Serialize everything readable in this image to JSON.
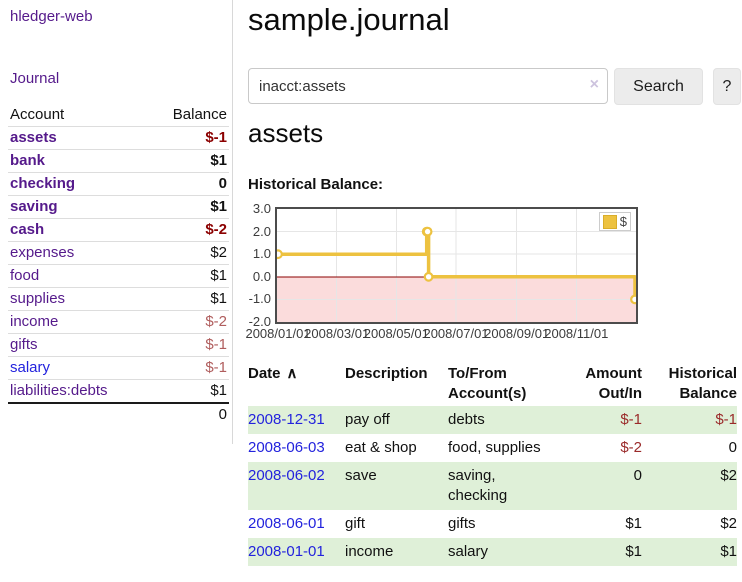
{
  "app": {
    "title": "hledger-web",
    "nav_journal": "Journal"
  },
  "sidebar": {
    "headers": {
      "account": "Account",
      "balance": "Balance"
    },
    "accounts": [
      {
        "name": "assets",
        "balance": "$-1"
      },
      {
        "name": "bank",
        "balance": "$1"
      },
      {
        "name": "checking",
        "balance": "0"
      },
      {
        "name": "saving",
        "balance": "$1"
      },
      {
        "name": "cash",
        "balance": "$-2"
      },
      {
        "name": "expenses",
        "balance": "$2"
      },
      {
        "name": "food",
        "balance": "$1"
      },
      {
        "name": "supplies",
        "balance": "$1"
      },
      {
        "name": "income",
        "balance": "$-2"
      },
      {
        "name": "gifts",
        "balance": "$-1"
      },
      {
        "name": "salary",
        "balance": "$-1"
      },
      {
        "name": "liabilities:debts",
        "balance": "$1"
      }
    ],
    "total": "0"
  },
  "header": {
    "title": "sample.journal"
  },
  "search": {
    "value": "inacct:assets",
    "clear_icon": "×",
    "button_label": "Search",
    "help_label": "?"
  },
  "account_page": {
    "heading": "assets",
    "chart_label": "Historical Balance:"
  },
  "chart_data": {
    "type": "line",
    "step": true,
    "title": "Historical Balance",
    "series": [
      {
        "name": "$",
        "color": "#edc240",
        "points": [
          {
            "date": "2008-01-01",
            "value": 1
          },
          {
            "date": "2008-06-01",
            "value": 2
          },
          {
            "date": "2008-06-02",
            "value": 2
          },
          {
            "date": "2008-06-03",
            "value": 0
          },
          {
            "date": "2008-12-31",
            "value": -1
          }
        ]
      }
    ],
    "x_range": [
      "2008-01-01",
      "2008-12-31"
    ],
    "ylim": [
      -2,
      3
    ],
    "y_ticks": [
      {
        "value": 3,
        "label": "3.0"
      },
      {
        "value": 2,
        "label": "2.0"
      },
      {
        "value": 1,
        "label": "1.0"
      },
      {
        "value": 0,
        "label": "0.0"
      },
      {
        "value": -1,
        "label": "-1.0"
      },
      {
        "value": -2,
        "label": "-2.0"
      }
    ],
    "x_ticks": [
      {
        "date": "2008-01-01",
        "label": "2008/01/01"
      },
      {
        "date": "2008-03-01",
        "label": "2008/03/01"
      },
      {
        "date": "2008-05-01",
        "label": "2008/05/01"
      },
      {
        "date": "2008-07-01",
        "label": "2008/07/01"
      },
      {
        "date": "2008-09-01",
        "label": "2008/09/01"
      },
      {
        "date": "2008-11-01",
        "label": "2008/11/01"
      }
    ],
    "legend": {
      "label": "$",
      "position": "top-right"
    },
    "grid": true,
    "grid_color": "#e6e6e6",
    "negative_region_color": "#fbdcdc",
    "zero_line_color": "#8b0000"
  },
  "register": {
    "columns": [
      {
        "label": "Date",
        "sort_icon": "∧"
      },
      {
        "label": "Description"
      },
      {
        "label": "To/From Account(s)"
      },
      {
        "label": "Amount Out/In"
      },
      {
        "label": "Historical Balance"
      }
    ],
    "rows": [
      {
        "date": "2008-12-31",
        "description": "pay off",
        "accounts": "debts",
        "amount": "$-1",
        "balance": "$-1"
      },
      {
        "date": "2008-06-03",
        "description": "eat & shop",
        "accounts": "food, supplies",
        "amount": "$-2",
        "balance": "0"
      },
      {
        "date": "2008-06-02",
        "description": "save",
        "accounts": "saving, checking",
        "amount": "0",
        "balance": "$2"
      },
      {
        "date": "2008-06-01",
        "description": "gift",
        "accounts": "gifts",
        "amount": "$1",
        "balance": "$2"
      },
      {
        "date": "2008-01-01",
        "description": "income",
        "accounts": "salary",
        "amount": "$1",
        "balance": "$1"
      }
    ]
  }
}
